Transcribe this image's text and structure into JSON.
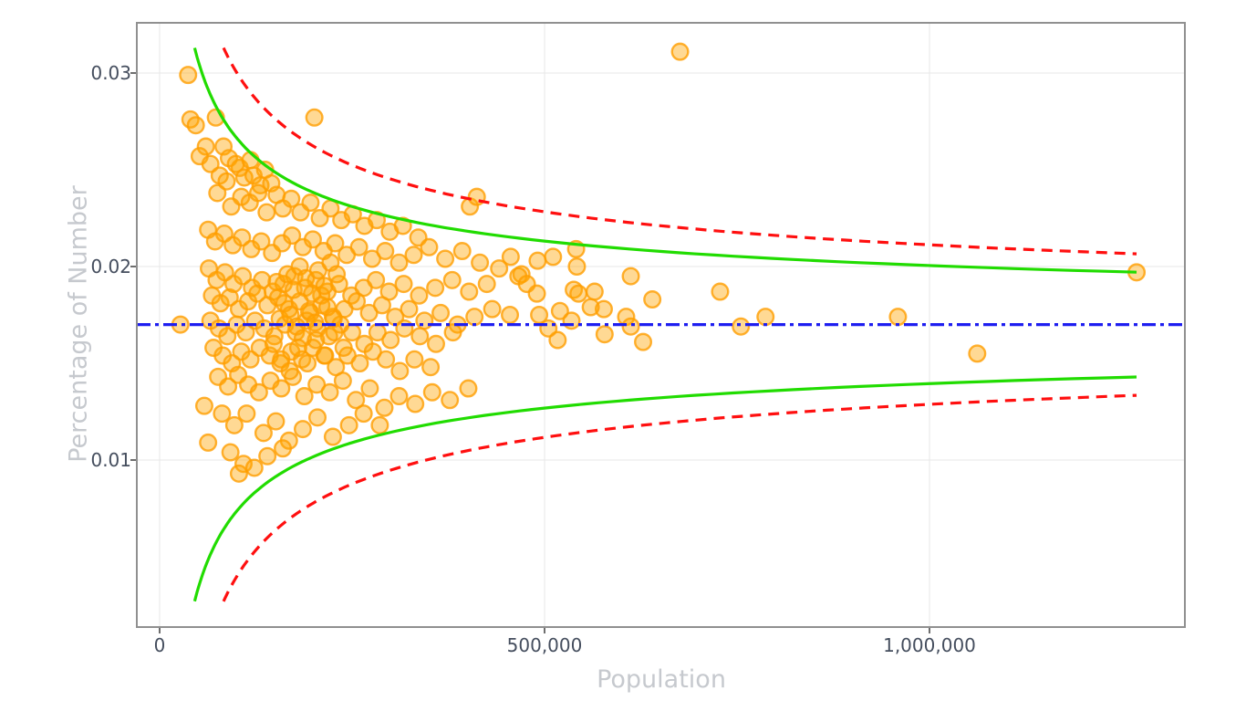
{
  "chart_data": {
    "type": "scatter",
    "title": "",
    "xlabel": "Population",
    "ylabel": "Percentage of Number",
    "xlim": [
      -30000,
      1330000
    ],
    "ylim": [
      0.0014,
      0.0334
    ],
    "grid": true,
    "legend": "none",
    "x_ticks": [
      {
        "label": "0",
        "value": 0
      },
      {
        "label": "500,000",
        "value": 500000
      },
      {
        "label": "1,000,000",
        "value": 1000000
      }
    ],
    "y_ticks": [
      {
        "label": "0.03",
        "value": 0.03
      },
      {
        "label": "0.02",
        "value": 0.02
      },
      {
        "label": "0.01",
        "value": 0.01
      }
    ],
    "center_line": {
      "value": 0.017,
      "color": "#1e1ef0",
      "style": "dashdot"
    },
    "funnel_curves": [
      {
        "name": "inner-control-limit-95",
        "k": 3.05,
        "color": "#21dc01",
        "style": "solid",
        "x_start": 45500,
        "x_end": 1269000
      },
      {
        "name": "outer-control-limit-99.8",
        "k": 4.12,
        "color": "#ff0f0f",
        "style": "dashed",
        "x_start": 83000,
        "x_end": 1269000
      }
    ],
    "marker": {
      "color": "#FFA500",
      "stroke_color": "#FF9E00",
      "fill_opacity": 0.42,
      "stroke_opacity": 0.8,
      "radius": 8.8
    },
    "colors": {
      "grid": "#e7e7e7",
      "border": "#909090",
      "tick": "#4a4a4a",
      "tick_text": "#454e5e",
      "axis_title_text": "#c6c9ce"
    },
    "points_pop_thousands_pct": [
      [
        37,
        0.0299
      ],
      [
        40,
        0.0276
      ],
      [
        47,
        0.0273
      ],
      [
        73,
        0.0277
      ],
      [
        201,
        0.0277
      ],
      [
        60,
        0.0262
      ],
      [
        52,
        0.0257
      ],
      [
        83,
        0.0262
      ],
      [
        66,
        0.0253
      ],
      [
        90,
        0.0256
      ],
      [
        104,
        0.0251
      ],
      [
        78,
        0.0247
      ],
      [
        110,
        0.0246
      ],
      [
        122,
        0.0247
      ],
      [
        131,
        0.0242
      ],
      [
        145,
        0.0243
      ],
      [
        99,
        0.0253
      ],
      [
        87,
        0.0244
      ],
      [
        118,
        0.0255
      ],
      [
        137,
        0.025
      ],
      [
        75,
        0.0238
      ],
      [
        93,
        0.0231
      ],
      [
        106,
        0.0236
      ],
      [
        117,
        0.0233
      ],
      [
        128,
        0.0238
      ],
      [
        139,
        0.0228
      ],
      [
        152,
        0.0237
      ],
      [
        160,
        0.023
      ],
      [
        171,
        0.0235
      ],
      [
        183,
        0.0228
      ],
      [
        196,
        0.0233
      ],
      [
        208,
        0.0225
      ],
      [
        222,
        0.023
      ],
      [
        236,
        0.0224
      ],
      [
        251,
        0.0227
      ],
      [
        266,
        0.0221
      ],
      [
        282,
        0.0224
      ],
      [
        299,
        0.0218
      ],
      [
        316,
        0.0221
      ],
      [
        336,
        0.0215
      ],
      [
        63,
        0.0219
      ],
      [
        72,
        0.0213
      ],
      [
        84,
        0.0217
      ],
      [
        95,
        0.0211
      ],
      [
        107,
        0.0215
      ],
      [
        119,
        0.0209
      ],
      [
        132,
        0.0213
      ],
      [
        146,
        0.0207
      ],
      [
        159,
        0.0212
      ],
      [
        172,
        0.0216
      ],
      [
        186,
        0.021
      ],
      [
        199,
        0.0214
      ],
      [
        213,
        0.0208
      ],
      [
        228,
        0.0212
      ],
      [
        243,
        0.0206
      ],
      [
        259,
        0.021
      ],
      [
        276,
        0.0204
      ],
      [
        293,
        0.0208
      ],
      [
        311,
        0.0202
      ],
      [
        330,
        0.0206
      ],
      [
        350,
        0.021
      ],
      [
        371,
        0.0204
      ],
      [
        393,
        0.0208
      ],
      [
        403,
        0.0231
      ],
      [
        412,
        0.0236
      ],
      [
        416,
        0.0202
      ],
      [
        441,
        0.0199
      ],
      [
        456,
        0.0205
      ],
      [
        470,
        0.0196
      ],
      [
        491,
        0.0203
      ],
      [
        511,
        0.0205
      ],
      [
        466,
        0.0195
      ],
      [
        477,
        0.0191
      ],
      [
        538,
        0.0188
      ],
      [
        544,
        0.0186
      ],
      [
        541,
        0.0209
      ],
      [
        542,
        0.02
      ],
      [
        565,
        0.0187
      ],
      [
        578,
        0.0165
      ],
      [
        577,
        0.0178
      ],
      [
        612,
        0.0195
      ],
      [
        606,
        0.0174
      ],
      [
        628,
        0.0161
      ],
      [
        517,
        0.0162
      ],
      [
        455,
        0.0175
      ],
      [
        493,
        0.0175
      ],
      [
        676,
        0.0311
      ],
      [
        728,
        0.0187
      ],
      [
        755,
        0.0169
      ],
      [
        787,
        0.0174
      ],
      [
        959,
        0.0174
      ],
      [
        1062,
        0.0155
      ],
      [
        1269,
        0.0197
      ],
      [
        612,
        0.0169
      ],
      [
        640,
        0.0183
      ],
      [
        520,
        0.0177
      ],
      [
        505,
        0.0168
      ],
      [
        535,
        0.0172
      ],
      [
        560,
        0.0179
      ],
      [
        490,
        0.0186
      ],
      [
        64,
        0.0199
      ],
      [
        74,
        0.0193
      ],
      [
        85,
        0.0197
      ],
      [
        96,
        0.0191
      ],
      [
        108,
        0.0195
      ],
      [
        120,
        0.0189
      ],
      [
        133,
        0.0193
      ],
      [
        147,
        0.0187
      ],
      [
        161,
        0.0191
      ],
      [
        175,
        0.0195
      ],
      [
        189,
        0.0189
      ],
      [
        203,
        0.0193
      ],
      [
        218,
        0.0187
      ],
      [
        233,
        0.0191
      ],
      [
        249,
        0.0185
      ],
      [
        265,
        0.0189
      ],
      [
        281,
        0.0193
      ],
      [
        298,
        0.0187
      ],
      [
        317,
        0.0191
      ],
      [
        337,
        0.0185
      ],
      [
        358,
        0.0189
      ],
      [
        380,
        0.0193
      ],
      [
        402,
        0.0187
      ],
      [
        425,
        0.0191
      ],
      [
        68,
        0.0185
      ],
      [
        79,
        0.0181
      ],
      [
        91,
        0.0184
      ],
      [
        103,
        0.0178
      ],
      [
        115,
        0.0182
      ],
      [
        127,
        0.0186
      ],
      [
        140,
        0.018
      ],
      [
        154,
        0.0184
      ],
      [
        168,
        0.0178
      ],
      [
        182,
        0.0182
      ],
      [
        196,
        0.0176
      ],
      [
        210,
        0.018
      ],
      [
        225,
        0.0174
      ],
      [
        240,
        0.0178
      ],
      [
        256,
        0.0182
      ],
      [
        272,
        0.0176
      ],
      [
        289,
        0.018
      ],
      [
        306,
        0.0174
      ],
      [
        324,
        0.0178
      ],
      [
        344,
        0.0172
      ],
      [
        365,
        0.0176
      ],
      [
        387,
        0.017
      ],
      [
        409,
        0.0174
      ],
      [
        432,
        0.0178
      ],
      [
        66,
        0.0172
      ],
      [
        77,
        0.0168
      ],
      [
        88,
        0.0164
      ],
      [
        100,
        0.017
      ],
      [
        112,
        0.0166
      ],
      [
        124,
        0.0172
      ],
      [
        136,
        0.0168
      ],
      [
        149,
        0.0164
      ],
      [
        163,
        0.017
      ],
      [
        177,
        0.0166
      ],
      [
        191,
        0.0172
      ],
      [
        205,
        0.0168
      ],
      [
        220,
        0.0164
      ],
      [
        235,
        0.017
      ],
      [
        250,
        0.0166
      ],
      [
        266,
        0.016
      ],
      [
        283,
        0.0166
      ],
      [
        300,
        0.0162
      ],
      [
        318,
        0.0168
      ],
      [
        338,
        0.0164
      ],
      [
        359,
        0.016
      ],
      [
        381,
        0.0166
      ],
      [
        70,
        0.0158
      ],
      [
        82,
        0.0154
      ],
      [
        94,
        0.015
      ],
      [
        106,
        0.0156
      ],
      [
        118,
        0.0152
      ],
      [
        130,
        0.0158
      ],
      [
        143,
        0.0154
      ],
      [
        157,
        0.015
      ],
      [
        171,
        0.0156
      ],
      [
        185,
        0.0152
      ],
      [
        199,
        0.0158
      ],
      [
        214,
        0.0154
      ],
      [
        229,
        0.0148
      ],
      [
        244,
        0.0154
      ],
      [
        260,
        0.015
      ],
      [
        277,
        0.0156
      ],
      [
        294,
        0.0152
      ],
      [
        312,
        0.0146
      ],
      [
        331,
        0.0152
      ],
      [
        352,
        0.0148
      ],
      [
        76,
        0.0143
      ],
      [
        89,
        0.0138
      ],
      [
        102,
        0.0144
      ],
      [
        115,
        0.0139
      ],
      [
        129,
        0.0135
      ],
      [
        144,
        0.0141
      ],
      [
        158,
        0.0137
      ],
      [
        173,
        0.0143
      ],
      [
        188,
        0.0133
      ],
      [
        204,
        0.0139
      ],
      [
        221,
        0.0135
      ],
      [
        238,
        0.0141
      ],
      [
        255,
        0.0131
      ],
      [
        273,
        0.0137
      ],
      [
        292,
        0.0127
      ],
      [
        311,
        0.0133
      ],
      [
        332,
        0.0129
      ],
      [
        354,
        0.0135
      ],
      [
        377,
        0.0131
      ],
      [
        401,
        0.0137
      ],
      [
        81,
        0.0124
      ],
      [
        97,
        0.0118
      ],
      [
        113,
        0.0124
      ],
      [
        135,
        0.0114
      ],
      [
        151,
        0.012
      ],
      [
        168,
        0.011
      ],
      [
        186,
        0.0116
      ],
      [
        205,
        0.0122
      ],
      [
        225,
        0.0112
      ],
      [
        246,
        0.0118
      ],
      [
        58,
        0.0128
      ],
      [
        63,
        0.0109
      ],
      [
        92,
        0.0104
      ],
      [
        109,
        0.0098
      ],
      [
        103,
        0.0093
      ],
      [
        123,
        0.0096
      ],
      [
        140,
        0.0102
      ],
      [
        160,
        0.0106
      ],
      [
        265,
        0.0124
      ],
      [
        286,
        0.0118
      ],
      [
        156,
        0.0173
      ],
      [
        162,
        0.0181
      ],
      [
        170,
        0.0175
      ],
      [
        178,
        0.0169
      ],
      [
        186,
        0.0163
      ],
      [
        194,
        0.0177
      ],
      [
        202,
        0.0171
      ],
      [
        210,
        0.0185
      ],
      [
        218,
        0.0179
      ],
      [
        226,
        0.0173
      ],
      [
        152,
        0.0192
      ],
      [
        166,
        0.0196
      ],
      [
        174,
        0.0188
      ],
      [
        182,
        0.02
      ],
      [
        190,
        0.0194
      ],
      [
        198,
        0.0186
      ],
      [
        206,
        0.0198
      ],
      [
        214,
        0.019
      ],
      [
        222,
        0.0202
      ],
      [
        230,
        0.0196
      ],
      [
        148,
        0.016
      ],
      [
        158,
        0.0152
      ],
      [
        169,
        0.0146
      ],
      [
        180,
        0.0158
      ],
      [
        192,
        0.015
      ],
      [
        203,
        0.0162
      ],
      [
        215,
        0.0154
      ],
      [
        227,
        0.0166
      ],
      [
        239,
        0.0158
      ],
      [
        27,
        0.017
      ]
    ]
  },
  "axes": {
    "x_title": "Population",
    "y_title": "Percentage of Number"
  }
}
